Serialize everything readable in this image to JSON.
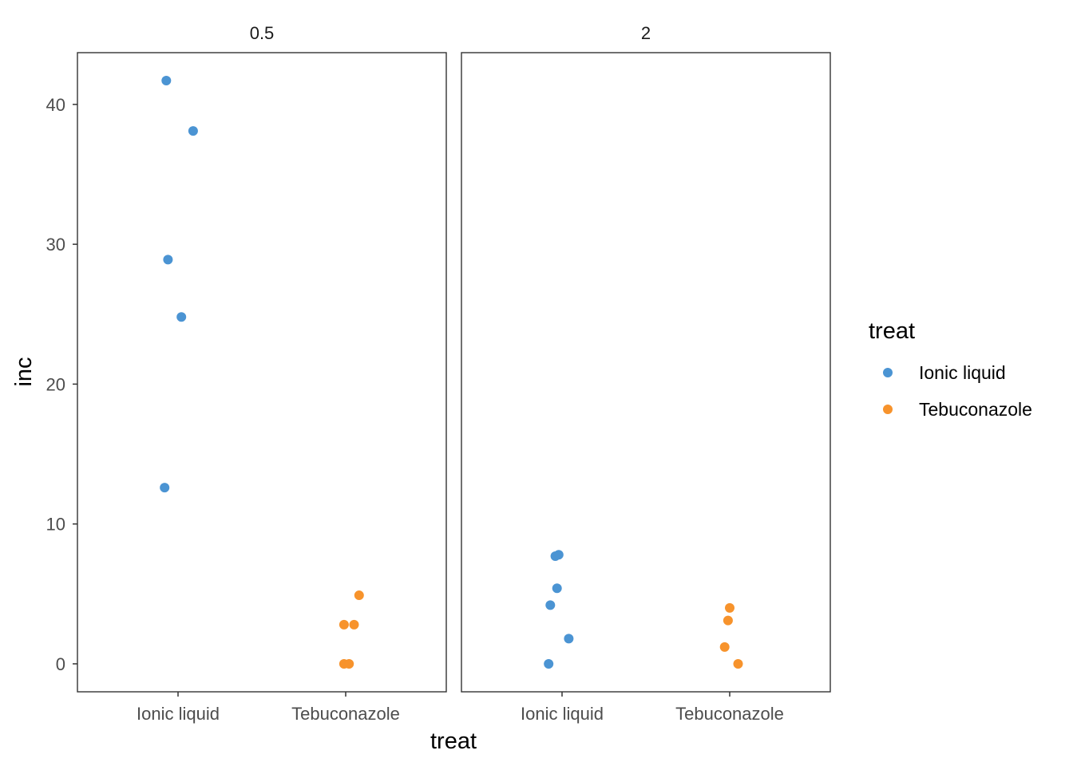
{
  "chart_data": {
    "type": "scatter",
    "facet_variable": "dose",
    "panels": [
      {
        "strip_label": "0.5",
        "points": [
          {
            "treat": "Ionic liquid",
            "jitter": -0.07,
            "inc": 41.7
          },
          {
            "treat": "Ionic liquid",
            "jitter": 0.09,
            "inc": 38.1
          },
          {
            "treat": "Ionic liquid",
            "jitter": -0.06,
            "inc": 28.9
          },
          {
            "treat": "Ionic liquid",
            "jitter": 0.02,
            "inc": 24.8
          },
          {
            "treat": "Ionic liquid",
            "jitter": -0.08,
            "inc": 12.6
          },
          {
            "treat": "Tebuconazole",
            "jitter": 0.08,
            "inc": 4.9
          },
          {
            "treat": "Tebuconazole",
            "jitter": -0.01,
            "inc": 2.8
          },
          {
            "treat": "Tebuconazole",
            "jitter": 0.05,
            "inc": 2.8
          },
          {
            "treat": "Tebuconazole",
            "jitter": -0.01,
            "inc": 0.0
          },
          {
            "treat": "Tebuconazole",
            "jitter": 0.02,
            "inc": 0.0
          }
        ]
      },
      {
        "strip_label": "2",
        "points": [
          {
            "treat": "Ionic liquid",
            "jitter": -0.04,
            "inc": 7.7
          },
          {
            "treat": "Ionic liquid",
            "jitter": -0.02,
            "inc": 7.8
          },
          {
            "treat": "Ionic liquid",
            "jitter": -0.03,
            "inc": 5.4
          },
          {
            "treat": "Ionic liquid",
            "jitter": -0.07,
            "inc": 4.2
          },
          {
            "treat": "Ionic liquid",
            "jitter": 0.04,
            "inc": 1.8
          },
          {
            "treat": "Ionic liquid",
            "jitter": -0.08,
            "inc": 0.0
          },
          {
            "treat": "Tebuconazole",
            "jitter": 0.0,
            "inc": 4.0
          },
          {
            "treat": "Tebuconazole",
            "jitter": -0.01,
            "inc": 3.1
          },
          {
            "treat": "Tebuconazole",
            "jitter": -0.03,
            "inc": 1.2
          },
          {
            "treat": "Tebuconazole",
            "jitter": 0.05,
            "inc": 0.0
          }
        ]
      }
    ],
    "categories": [
      "Ionic liquid",
      "Tebuconazole"
    ],
    "xlabel": "treat",
    "ylabel": "inc",
    "ylim": [
      -2.0,
      43.7
    ],
    "yticks": [
      0,
      10,
      20,
      30,
      40
    ],
    "legend": {
      "title": "treat",
      "position": "right",
      "entries": [
        {
          "label": "Ionic liquid",
          "color": "#4b94d3"
        },
        {
          "label": "Tebuconazole",
          "color": "#f7932c"
        }
      ]
    },
    "grid": false
  },
  "colors": {
    "Ionic liquid": "#4b94d3",
    "Tebuconazole": "#f7932c",
    "panel_border": "#333333",
    "tick": "#333333"
  }
}
